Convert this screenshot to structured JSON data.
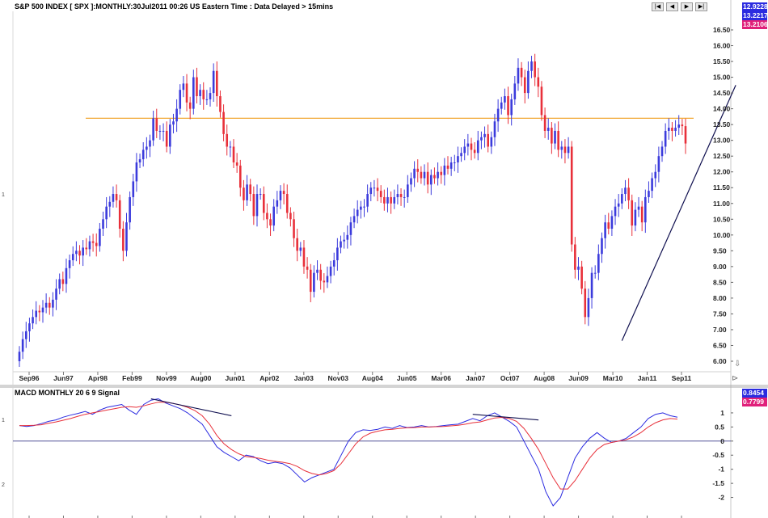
{
  "header": {
    "title": "S&P 500 INDEX [ SPX ]:MONTHLY:30Jul2011 00:26 US Eastern Time  : Data Delayed > 15mins",
    "nav_buttons": [
      "|◀",
      "◀",
      "▶",
      "▶|"
    ]
  },
  "price_badges": [
    {
      "label": "12.9228",
      "color": "#2b2be0"
    },
    {
      "label": "13.2217",
      "color": "#2b2be0"
    },
    {
      "label": "13.2106",
      "color": "#e0207a"
    }
  ],
  "macd": {
    "title": "MACD MONTHLY 20 6 9 Signal",
    "badges": [
      {
        "label": "0.8454",
        "color": "#2b2be0"
      },
      {
        "label": "0.7799",
        "color": "#e0207a"
      }
    ]
  },
  "left_scale_marks": [
    "1",
    "1",
    "2"
  ],
  "chart_data": [
    {
      "type": "candlestick",
      "title": "S&P 500 INDEX [ SPX ]:MONTHLY",
      "x_tick_labels": [
        "Sep96",
        "Jun97",
        "Apr98",
        "Feb99",
        "Nov99",
        "Aug00",
        "Jun01",
        "Apr02",
        "Jan03",
        "Nov03",
        "Aug04",
        "Jun05",
        "Mar06",
        "Jan07",
        "Oct07",
        "Aug08",
        "Jun09",
        "Mar10",
        "Jan11",
        "Sep11"
      ],
      "y_tick_labels": [
        "6.00",
        "6.50",
        "7.00",
        "7.50",
        "8.00",
        "8.50",
        "9.00",
        "9.50",
        "10.00",
        "10.50",
        "11.00",
        "11.50",
        "12.00",
        "12.50",
        "13.00",
        "13.50",
        "14.00",
        "14.50",
        "15.00",
        "15.50",
        "16.00",
        "16.50"
      ],
      "ylim": [
        6.0,
        16.5
      ],
      "up_color": "#3b3bdc",
      "down_color": "#e8303a",
      "closes": [
        6.3,
        6.7,
        6.95,
        7.2,
        7.4,
        7.6,
        7.55,
        7.7,
        7.85,
        7.7,
        7.95,
        8.3,
        8.6,
        8.45,
        8.95,
        9.2,
        9.4,
        9.5,
        9.35,
        9.6,
        9.55,
        9.8,
        9.75,
        9.65,
        10.2,
        10.5,
        10.9,
        11.05,
        11.3,
        11.1,
        10.2,
        9.5,
        10.4,
        11.2,
        11.7,
        12.3,
        12.4,
        12.7,
        12.8,
        13.0,
        13.7,
        13.3,
        13.3,
        13.3,
        12.8,
        13.5,
        13.6,
        14.0,
        14.6,
        14.8,
        14.2,
        14.0,
        15.0,
        14.4,
        14.6,
        14.3,
        14.3,
        14.5,
        15.2,
        14.4,
        13.9,
        13.2,
        12.8,
        12.8,
        12.3,
        12.2,
        11.5,
        11.1,
        11.6,
        11.3,
        10.6,
        11.3,
        11.3,
        10.7,
        10.5,
        10.3,
        10.9,
        11.1,
        11.4,
        11.3,
        10.7,
        10.5,
        9.9,
        9.5,
        9.6,
        9.0,
        8.9,
        8.2,
        8.8,
        8.9,
        8.55,
        8.5,
        8.7,
        9.0,
        9.2,
        9.6,
        9.8,
        9.85,
        10.0,
        10.4,
        10.6,
        10.8,
        10.9,
        10.9,
        11.3,
        11.5,
        11.5,
        11.4,
        11.2,
        11.0,
        11.2,
        11.0,
        11.2,
        11.3,
        11.2,
        11.2,
        11.6,
        11.8,
        12.1,
        12.0,
        11.8,
        12.0,
        11.6,
        11.9,
        11.8,
        12.0,
        11.9,
        12.2,
        12.1,
        12.3,
        12.3,
        12.5,
        12.6,
        12.8,
        12.9,
        12.7,
        12.6,
        13.0,
        13.1,
        13.2,
        12.8,
        13.1,
        13.6,
        14.0,
        14.2,
        14.4,
        13.8,
        14.3,
        14.8,
        15.3,
        15.0,
        14.5,
        15.2,
        15.5,
        15.0,
        14.7,
        13.8,
        13.3,
        13.4,
        12.9,
        13.3,
        12.7,
        12.8,
        12.6,
        12.8,
        9.7,
        8.9,
        9.0,
        8.3,
        7.4,
        8.0,
        8.8,
        8.8,
        9.4,
        9.9,
        10.4,
        10.2,
        10.6,
        10.9,
        11.0,
        11.3,
        11.5,
        11.1,
        10.3,
        10.8,
        10.9,
        10.4,
        11.2,
        11.4,
        11.8,
        12.0,
        12.5,
        12.8,
        13.3,
        13.4,
        13.3,
        13.4,
        13.5,
        13.45,
        12.9
      ],
      "horizontal_level": 13.7,
      "horizontal_level_color": "#f0a020",
      "trendline": {
        "from": [
          180,
          6.65
        ],
        "to": [
          214,
          14.75
        ],
        "color": "#101050"
      }
    },
    {
      "type": "line",
      "title": "MACD MONTHLY 20 6 9 Signal",
      "y_tick_labels": [
        "1",
        "0.5",
        "0",
        "-0.5",
        "-1",
        "-1.5",
        "-2"
      ],
      "ylim": [
        -2.5,
        1.6
      ],
      "series": [
        {
          "name": "MACD",
          "color": "#2b2be0",
          "values": [
            0.55,
            0.52,
            0.55,
            0.62,
            0.7,
            0.75,
            0.85,
            0.92,
            0.98,
            1.05,
            0.95,
            1.1,
            1.2,
            1.25,
            1.3,
            1.1,
            0.95,
            1.3,
            1.45,
            1.5,
            1.35,
            1.25,
            1.15,
            1.0,
            0.8,
            0.6,
            0.2,
            -0.2,
            -0.4,
            -0.55,
            -0.7,
            -0.5,
            -0.55,
            -0.7,
            -0.8,
            -0.75,
            -0.8,
            -0.95,
            -1.2,
            -1.45,
            -1.3,
            -1.2,
            -1.1,
            -1.0,
            -0.5,
            0.0,
            0.3,
            0.4,
            0.38,
            0.42,
            0.5,
            0.45,
            0.55,
            0.48,
            0.5,
            0.55,
            0.5,
            0.52,
            0.55,
            0.58,
            0.6,
            0.7,
            0.8,
            0.72,
            0.9,
            1.0,
            0.85,
            0.7,
            0.5,
            0.0,
            -0.5,
            -1.0,
            -1.8,
            -2.3,
            -2.0,
            -1.3,
            -0.6,
            -0.2,
            0.1,
            0.3,
            0.1,
            -0.05,
            0.0,
            0.1,
            0.3,
            0.5,
            0.8,
            0.95,
            1.0,
            0.9,
            0.85
          ]
        },
        {
          "name": "Signal",
          "color": "#e8303a",
          "values": [
            0.55,
            0.55,
            0.56,
            0.58,
            0.63,
            0.68,
            0.74,
            0.8,
            0.88,
            0.95,
            1.0,
            1.05,
            1.1,
            1.15,
            1.2,
            1.22,
            1.2,
            1.25,
            1.32,
            1.38,
            1.38,
            1.34,
            1.28,
            1.2,
            1.08,
            0.9,
            0.6,
            0.2,
            -0.1,
            -0.3,
            -0.45,
            -0.55,
            -0.58,
            -0.62,
            -0.68,
            -0.72,
            -0.75,
            -0.8,
            -0.9,
            -1.05,
            -1.15,
            -1.2,
            -1.15,
            -1.05,
            -0.8,
            -0.45,
            -0.1,
            0.15,
            0.28,
            0.35,
            0.4,
            0.42,
            0.45,
            0.47,
            0.48,
            0.5,
            0.5,
            0.51,
            0.52,
            0.54,
            0.56,
            0.6,
            0.65,
            0.68,
            0.75,
            0.82,
            0.84,
            0.8,
            0.7,
            0.45,
            0.1,
            -0.3,
            -0.8,
            -1.3,
            -1.7,
            -1.7,
            -1.4,
            -1.0,
            -0.6,
            -0.3,
            -0.12,
            -0.05,
            0.0,
            0.05,
            0.15,
            0.3,
            0.5,
            0.65,
            0.75,
            0.8,
            0.78
          ]
        }
      ],
      "trendlines": [
        {
          "from": [
            18,
            1.5
          ],
          "to": [
            29,
            0.9
          ],
          "color": "#101050"
        },
        {
          "from": [
            62,
            0.95
          ],
          "to": [
            71,
            0.75
          ],
          "color": "#101050"
        }
      ]
    }
  ]
}
